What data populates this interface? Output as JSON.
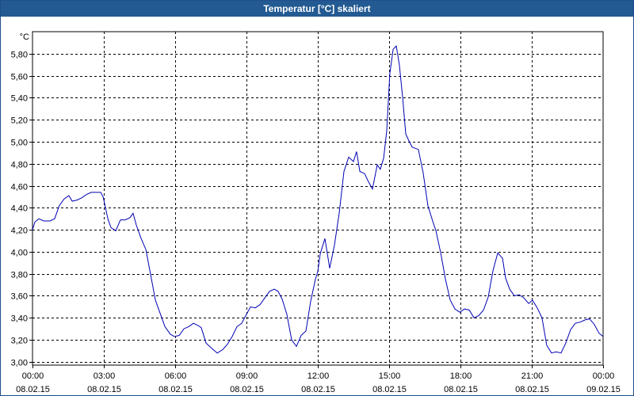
{
  "window": {
    "title": "Temperatur [°C] skaliert"
  },
  "chart_data": {
    "type": "line",
    "title": "Temperatur [°C] skaliert",
    "ylabel": "°C",
    "xlabel": "",
    "ylim": [
      2.97,
      6.0
    ],
    "xlim_hours": [
      0,
      24
    ],
    "grid": true,
    "y_ticks": [
      "3,00",
      "3,20",
      "3,40",
      "3,60",
      "3,80",
      "4,00",
      "4,20",
      "4,40",
      "4,60",
      "4,80",
      "5,00",
      "5,20",
      "5,40",
      "5,60",
      "5,80"
    ],
    "y_tick_values": [
      3.0,
      3.2,
      3.4,
      3.6,
      3.8,
      4.0,
      4.2,
      4.4,
      4.6,
      4.8,
      5.0,
      5.2,
      5.4,
      5.6,
      5.8
    ],
    "x_ticks": [
      {
        "time": "00:00",
        "date": "08.02.15"
      },
      {
        "time": "03:00",
        "date": "08.02.15"
      },
      {
        "time": "06:00",
        "date": "08.02.15"
      },
      {
        "time": "09:00",
        "date": "08.02.15"
      },
      {
        "time": "12:00",
        "date": "08.02.15"
      },
      {
        "time": "15:00",
        "date": "08.02.15"
      },
      {
        "time": "18:00",
        "date": "08.02.15"
      },
      {
        "time": "21:00",
        "date": "08.02.15"
      },
      {
        "time": "00:00",
        "date": "09.02.15"
      }
    ],
    "series": [
      {
        "color": "#0000b4",
        "x": [
          0.0,
          0.1,
          0.27,
          0.47,
          0.73,
          0.93,
          1.13,
          1.33,
          1.53,
          1.67,
          1.87,
          2.07,
          2.27,
          2.47,
          2.67,
          2.87,
          2.97,
          3.17,
          3.3,
          3.5,
          3.7,
          3.9,
          4.1,
          4.23,
          4.37,
          4.57,
          4.77,
          4.97,
          5.17,
          5.37,
          5.57,
          5.8,
          5.97,
          6.17,
          6.37,
          6.57,
          6.77,
          6.97,
          7.1,
          7.3,
          7.5,
          7.77,
          8.0,
          8.2,
          8.4,
          8.6,
          8.8,
          8.97,
          9.17,
          9.37,
          9.57,
          9.77,
          9.97,
          10.17,
          10.33,
          10.5,
          10.7,
          10.9,
          11.1,
          11.3,
          11.5,
          11.7,
          11.9,
          12.0,
          12.1,
          12.3,
          12.5,
          12.7,
          12.9,
          13.1,
          13.3,
          13.5,
          13.63,
          13.77,
          13.97,
          14.1,
          14.3,
          14.5,
          14.63,
          14.77,
          14.9,
          15.03,
          15.17,
          15.3,
          15.43,
          15.57,
          15.7,
          15.83,
          15.97,
          16.23,
          16.43,
          16.63,
          16.83,
          16.97,
          17.17,
          17.37,
          17.57,
          17.77,
          17.97,
          18.17,
          18.37,
          18.57,
          18.77,
          18.97,
          19.17,
          19.37,
          19.57,
          19.77,
          19.9,
          20.07,
          20.27,
          20.47,
          20.67,
          20.87,
          21.03,
          21.23,
          21.43,
          21.63,
          21.83,
          22.03,
          22.23,
          22.43,
          22.63,
          22.83,
          23.03,
          23.23,
          23.43,
          23.63,
          23.83,
          24.0
        ],
        "values": [
          4.2,
          4.27,
          4.3,
          4.28,
          4.28,
          4.3,
          4.42,
          4.48,
          4.51,
          4.46,
          4.47,
          4.49,
          4.52,
          4.54,
          4.54,
          4.54,
          4.5,
          4.3,
          4.22,
          4.19,
          4.29,
          4.29,
          4.31,
          4.35,
          4.24,
          4.12,
          4.02,
          3.79,
          3.56,
          3.44,
          3.32,
          3.25,
          3.23,
          3.24,
          3.3,
          3.32,
          3.35,
          3.33,
          3.31,
          3.17,
          3.13,
          3.08,
          3.11,
          3.16,
          3.23,
          3.32,
          3.35,
          3.42,
          3.5,
          3.49,
          3.52,
          3.58,
          3.64,
          3.66,
          3.64,
          3.57,
          3.43,
          3.2,
          3.14,
          3.24,
          3.28,
          3.55,
          3.75,
          3.82,
          3.98,
          4.12,
          3.85,
          4.06,
          4.35,
          4.73,
          4.86,
          4.82,
          4.91,
          4.73,
          4.71,
          4.65,
          4.57,
          4.79,
          4.75,
          4.85,
          5.1,
          5.62,
          5.84,
          5.87,
          5.7,
          5.4,
          5.07,
          5.01,
          4.95,
          4.93,
          4.72,
          4.42,
          4.28,
          4.19,
          3.99,
          3.75,
          3.56,
          3.48,
          3.45,
          3.48,
          3.47,
          3.4,
          3.42,
          3.47,
          3.59,
          3.83,
          3.99,
          3.94,
          3.76,
          3.66,
          3.6,
          3.61,
          3.58,
          3.53,
          3.56,
          3.49,
          3.4,
          3.15,
          3.08,
          3.09,
          3.08,
          3.17,
          3.29,
          3.35,
          3.36,
          3.38,
          3.39,
          3.34,
          3.26,
          3.23
        ]
      }
    ]
  }
}
